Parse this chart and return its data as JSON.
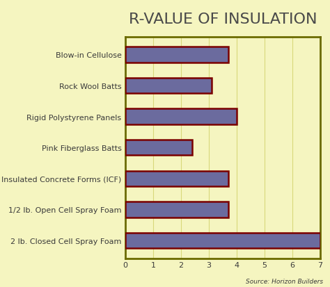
{
  "title": "R-VALUE OF INSULATION",
  "categories": [
    "2 lb. Closed Cell Spray Foam",
    "1/2 lb. Open Cell Spray Foam",
    "Insulated Concrete Forms (ICF)",
    "Pink Fiberglass Batts",
    "Rigid Polystyrene Panels",
    "Rock Wool Batts",
    "Blow-in Cellulose"
  ],
  "values": [
    7.0,
    3.7,
    3.7,
    2.4,
    4.0,
    3.1,
    3.7
  ],
  "bar_color": "#6B6B9E",
  "bar_edge_color": "#7A0000",
  "background_color": "#F5F5C0",
  "plot_bg_color": "#F5F5C0",
  "title_color": "#4A4A4A",
  "tick_label_color": "#3A3A3A",
  "grid_color": "#D8D87A",
  "border_color": "#6B6B00",
  "xlim": [
    0,
    7
  ],
  "xticks": [
    0,
    1,
    2,
    3,
    4,
    5,
    6,
    7
  ],
  "source_text": "Source: Horizon Builders",
  "title_fontsize": 16,
  "label_fontsize": 8,
  "tick_fontsize": 8,
  "source_fontsize": 6.5,
  "bar_height": 0.5
}
